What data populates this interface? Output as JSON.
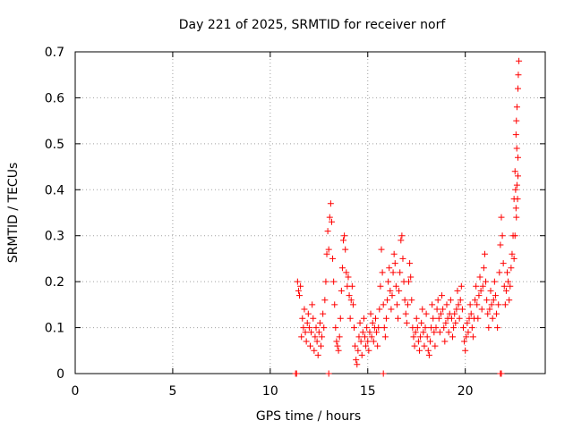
{
  "chart_data": {
    "type": "scatter",
    "title": "Day 221 of 2025, SRMTID for receiver norf",
    "xlabel": "GPS time / hours",
    "ylabel": "SRMTID / TECUs",
    "xlim": [
      0,
      24.1
    ],
    "ylim": [
      0,
      0.7
    ],
    "x_ticks": [
      0,
      5,
      10,
      15,
      20
    ],
    "y_ticks": [
      0,
      0.1,
      0.2,
      0.3,
      0.4,
      0.5,
      0.6,
      0.7
    ],
    "x_tick_labels": [
      "0",
      "5",
      "10",
      "15",
      "20"
    ],
    "y_tick_labels": [
      "0",
      "0.1",
      "0.2",
      "0.3",
      "0.4",
      "0.5",
      "0.6",
      "0.7"
    ],
    "grid": true,
    "marker": "+",
    "color": "#ff0000",
    "series": [
      {
        "name": "SRMTID",
        "points": [
          [
            11.3,
            0.0
          ],
          [
            11.35,
            0.0
          ],
          [
            13.0,
            0.0
          ],
          [
            15.8,
            0.0
          ],
          [
            21.8,
            0.0
          ],
          [
            21.85,
            0.0
          ],
          [
            11.4,
            0.2
          ],
          [
            11.45,
            0.18
          ],
          [
            11.5,
            0.17
          ],
          [
            11.55,
            0.19
          ],
          [
            11.6,
            0.08
          ],
          [
            11.65,
            0.12
          ],
          [
            11.7,
            0.1
          ],
          [
            11.75,
            0.14
          ],
          [
            11.8,
            0.09
          ],
          [
            11.85,
            0.07
          ],
          [
            11.9,
            0.11
          ],
          [
            11.95,
            0.13
          ],
          [
            12.0,
            0.1
          ],
          [
            12.05,
            0.06
          ],
          [
            12.1,
            0.09
          ],
          [
            12.15,
            0.15
          ],
          [
            12.2,
            0.12
          ],
          [
            12.25,
            0.05
          ],
          [
            12.3,
            0.08
          ],
          [
            12.35,
            0.1
          ],
          [
            12.4,
            0.07
          ],
          [
            12.45,
            0.04
          ],
          [
            12.5,
            0.09
          ],
          [
            12.55,
            0.11
          ],
          [
            12.6,
            0.06
          ],
          [
            12.65,
            0.08
          ],
          [
            12.7,
            0.13
          ],
          [
            12.75,
            0.1
          ],
          [
            12.8,
            0.16
          ],
          [
            12.85,
            0.2
          ],
          [
            12.9,
            0.26
          ],
          [
            12.95,
            0.31
          ],
          [
            13.0,
            0.27
          ],
          [
            13.05,
            0.34
          ],
          [
            13.1,
            0.37
          ],
          [
            13.15,
            0.33
          ],
          [
            13.2,
            0.25
          ],
          [
            13.25,
            0.2
          ],
          [
            13.3,
            0.15
          ],
          [
            13.35,
            0.1
          ],
          [
            13.4,
            0.07
          ],
          [
            13.45,
            0.06
          ],
          [
            13.5,
            0.05
          ],
          [
            13.55,
            0.08
          ],
          [
            13.6,
            0.12
          ],
          [
            13.65,
            0.18
          ],
          [
            13.7,
            0.23
          ],
          [
            13.75,
            0.29
          ],
          [
            13.8,
            0.3
          ],
          [
            13.85,
            0.27
          ],
          [
            13.9,
            0.22
          ],
          [
            13.95,
            0.19
          ],
          [
            14.0,
            0.21
          ],
          [
            14.05,
            0.17
          ],
          [
            14.1,
            0.12
          ],
          [
            14.15,
            0.16
          ],
          [
            14.2,
            0.19
          ],
          [
            14.25,
            0.15
          ],
          [
            14.3,
            0.1
          ],
          [
            14.35,
            0.06
          ],
          [
            14.4,
            0.03
          ],
          [
            14.45,
            0.02
          ],
          [
            14.5,
            0.05
          ],
          [
            14.55,
            0.08
          ],
          [
            14.6,
            0.11
          ],
          [
            14.65,
            0.07
          ],
          [
            14.7,
            0.04
          ],
          [
            14.75,
            0.09
          ],
          [
            14.8,
            0.12
          ],
          [
            14.85,
            0.08
          ],
          [
            14.9,
            0.06
          ],
          [
            14.95,
            0.1
          ],
          [
            15.0,
            0.07
          ],
          [
            15.05,
            0.05
          ],
          [
            15.1,
            0.09
          ],
          [
            15.15,
            0.13
          ],
          [
            15.2,
            0.08
          ],
          [
            15.25,
            0.11
          ],
          [
            15.3,
            0.07
          ],
          [
            15.35,
            0.1
          ],
          [
            15.4,
            0.12
          ],
          [
            15.45,
            0.09
          ],
          [
            15.5,
            0.06
          ],
          [
            15.55,
            0.1
          ],
          [
            15.6,
            0.14
          ],
          [
            15.65,
            0.19
          ],
          [
            15.7,
            0.27
          ],
          [
            15.75,
            0.22
          ],
          [
            15.8,
            0.15
          ],
          [
            15.85,
            0.1
          ],
          [
            15.9,
            0.08
          ],
          [
            15.95,
            0.12
          ],
          [
            16.0,
            0.16
          ],
          [
            16.05,
            0.2
          ],
          [
            16.1,
            0.23
          ],
          [
            16.15,
            0.18
          ],
          [
            16.2,
            0.14
          ],
          [
            16.25,
            0.17
          ],
          [
            16.3,
            0.22
          ],
          [
            16.35,
            0.26
          ],
          [
            16.4,
            0.24
          ],
          [
            16.45,
            0.19
          ],
          [
            16.5,
            0.15
          ],
          [
            16.55,
            0.12
          ],
          [
            16.6,
            0.18
          ],
          [
            16.65,
            0.22
          ],
          [
            16.7,
            0.29
          ],
          [
            16.75,
            0.3
          ],
          [
            16.8,
            0.25
          ],
          [
            16.85,
            0.2
          ],
          [
            16.9,
            0.16
          ],
          [
            16.95,
            0.13
          ],
          [
            17.0,
            0.11
          ],
          [
            17.05,
            0.15
          ],
          [
            17.1,
            0.2
          ],
          [
            17.15,
            0.24
          ],
          [
            17.2,
            0.21
          ],
          [
            17.25,
            0.16
          ],
          [
            17.3,
            0.1
          ],
          [
            17.35,
            0.08
          ],
          [
            17.4,
            0.06
          ],
          [
            17.45,
            0.09
          ],
          [
            17.5,
            0.12
          ],
          [
            17.55,
            0.1
          ],
          [
            17.6,
            0.07
          ],
          [
            17.65,
            0.05
          ],
          [
            17.7,
            0.08
          ],
          [
            17.75,
            0.11
          ],
          [
            17.8,
            0.14
          ],
          [
            17.85,
            0.09
          ],
          [
            17.9,
            0.06
          ],
          [
            17.95,
            0.1
          ],
          [
            18.0,
            0.13
          ],
          [
            18.05,
            0.08
          ],
          [
            18.1,
            0.05
          ],
          [
            18.15,
            0.04
          ],
          [
            18.2,
            0.07
          ],
          [
            18.25,
            0.1
          ],
          [
            18.3,
            0.15
          ],
          [
            18.35,
            0.12
          ],
          [
            18.4,
            0.09
          ],
          [
            18.45,
            0.06
          ],
          [
            18.5,
            0.1
          ],
          [
            18.55,
            0.14
          ],
          [
            18.6,
            0.16
          ],
          [
            18.65,
            0.12
          ],
          [
            18.7,
            0.09
          ],
          [
            18.75,
            0.13
          ],
          [
            18.8,
            0.17
          ],
          [
            18.85,
            0.14
          ],
          [
            18.9,
            0.1
          ],
          [
            18.95,
            0.07
          ],
          [
            19.0,
            0.11
          ],
          [
            19.05,
            0.15
          ],
          [
            19.1,
            0.12
          ],
          [
            19.15,
            0.09
          ],
          [
            19.2,
            0.13
          ],
          [
            19.25,
            0.16
          ],
          [
            19.3,
            0.12
          ],
          [
            19.35,
            0.08
          ],
          [
            19.4,
            0.1
          ],
          [
            19.45,
            0.13
          ],
          [
            19.5,
            0.11
          ],
          [
            19.55,
            0.14
          ],
          [
            19.6,
            0.18
          ],
          [
            19.65,
            0.15
          ],
          [
            19.7,
            0.12
          ],
          [
            19.75,
            0.16
          ],
          [
            19.8,
            0.19
          ],
          [
            19.85,
            0.14
          ],
          [
            19.9,
            0.1
          ],
          [
            19.95,
            0.07
          ],
          [
            20.0,
            0.05
          ],
          [
            20.05,
            0.08
          ],
          [
            20.1,
            0.11
          ],
          [
            20.15,
            0.09
          ],
          [
            20.2,
            0.12
          ],
          [
            20.25,
            0.15
          ],
          [
            20.3,
            0.13
          ],
          [
            20.35,
            0.1
          ],
          [
            20.4,
            0.08
          ],
          [
            20.45,
            0.12
          ],
          [
            20.5,
            0.16
          ],
          [
            20.55,
            0.19
          ],
          [
            20.6,
            0.15
          ],
          [
            20.65,
            0.12
          ],
          [
            20.7,
            0.17
          ],
          [
            20.75,
            0.21
          ],
          [
            20.8,
            0.18
          ],
          [
            20.85,
            0.14
          ],
          [
            20.9,
            0.19
          ],
          [
            20.95,
            0.23
          ],
          [
            21.0,
            0.26
          ],
          [
            21.05,
            0.2
          ],
          [
            21.1,
            0.16
          ],
          [
            21.15,
            0.13
          ],
          [
            21.2,
            0.1
          ],
          [
            21.25,
            0.14
          ],
          [
            21.3,
            0.18
          ],
          [
            21.35,
            0.15
          ],
          [
            21.4,
            0.12
          ],
          [
            21.45,
            0.16
          ],
          [
            21.5,
            0.2
          ],
          [
            21.55,
            0.17
          ],
          [
            21.6,
            0.13
          ],
          [
            21.65,
            0.1
          ],
          [
            21.7,
            0.15
          ],
          [
            21.75,
            0.22
          ],
          [
            21.8,
            0.28
          ],
          [
            21.85,
            0.34
          ],
          [
            21.9,
            0.3
          ],
          [
            21.95,
            0.24
          ],
          [
            22.0,
            0.19
          ],
          [
            22.05,
            0.15
          ],
          [
            22.1,
            0.18
          ],
          [
            22.15,
            0.22
          ],
          [
            22.2,
            0.2
          ],
          [
            22.25,
            0.16
          ],
          [
            22.3,
            0.19
          ],
          [
            22.35,
            0.23
          ],
          [
            22.4,
            0.26
          ],
          [
            22.45,
            0.3
          ],
          [
            22.5,
            0.38
          ],
          [
            22.55,
            0.44
          ],
          [
            22.6,
            0.52
          ],
          [
            22.62,
            0.55
          ],
          [
            22.65,
            0.58
          ],
          [
            22.7,
            0.62
          ],
          [
            22.72,
            0.65
          ],
          [
            22.75,
            0.68
          ],
          [
            22.6,
            0.36
          ],
          [
            22.65,
            0.41
          ],
          [
            22.7,
            0.47
          ],
          [
            22.62,
            0.34
          ],
          [
            22.58,
            0.4
          ],
          [
            22.55,
            0.3
          ],
          [
            22.5,
            0.25
          ],
          [
            22.68,
            0.38
          ],
          [
            22.7,
            0.43
          ],
          [
            22.64,
            0.49
          ]
        ]
      }
    ]
  }
}
